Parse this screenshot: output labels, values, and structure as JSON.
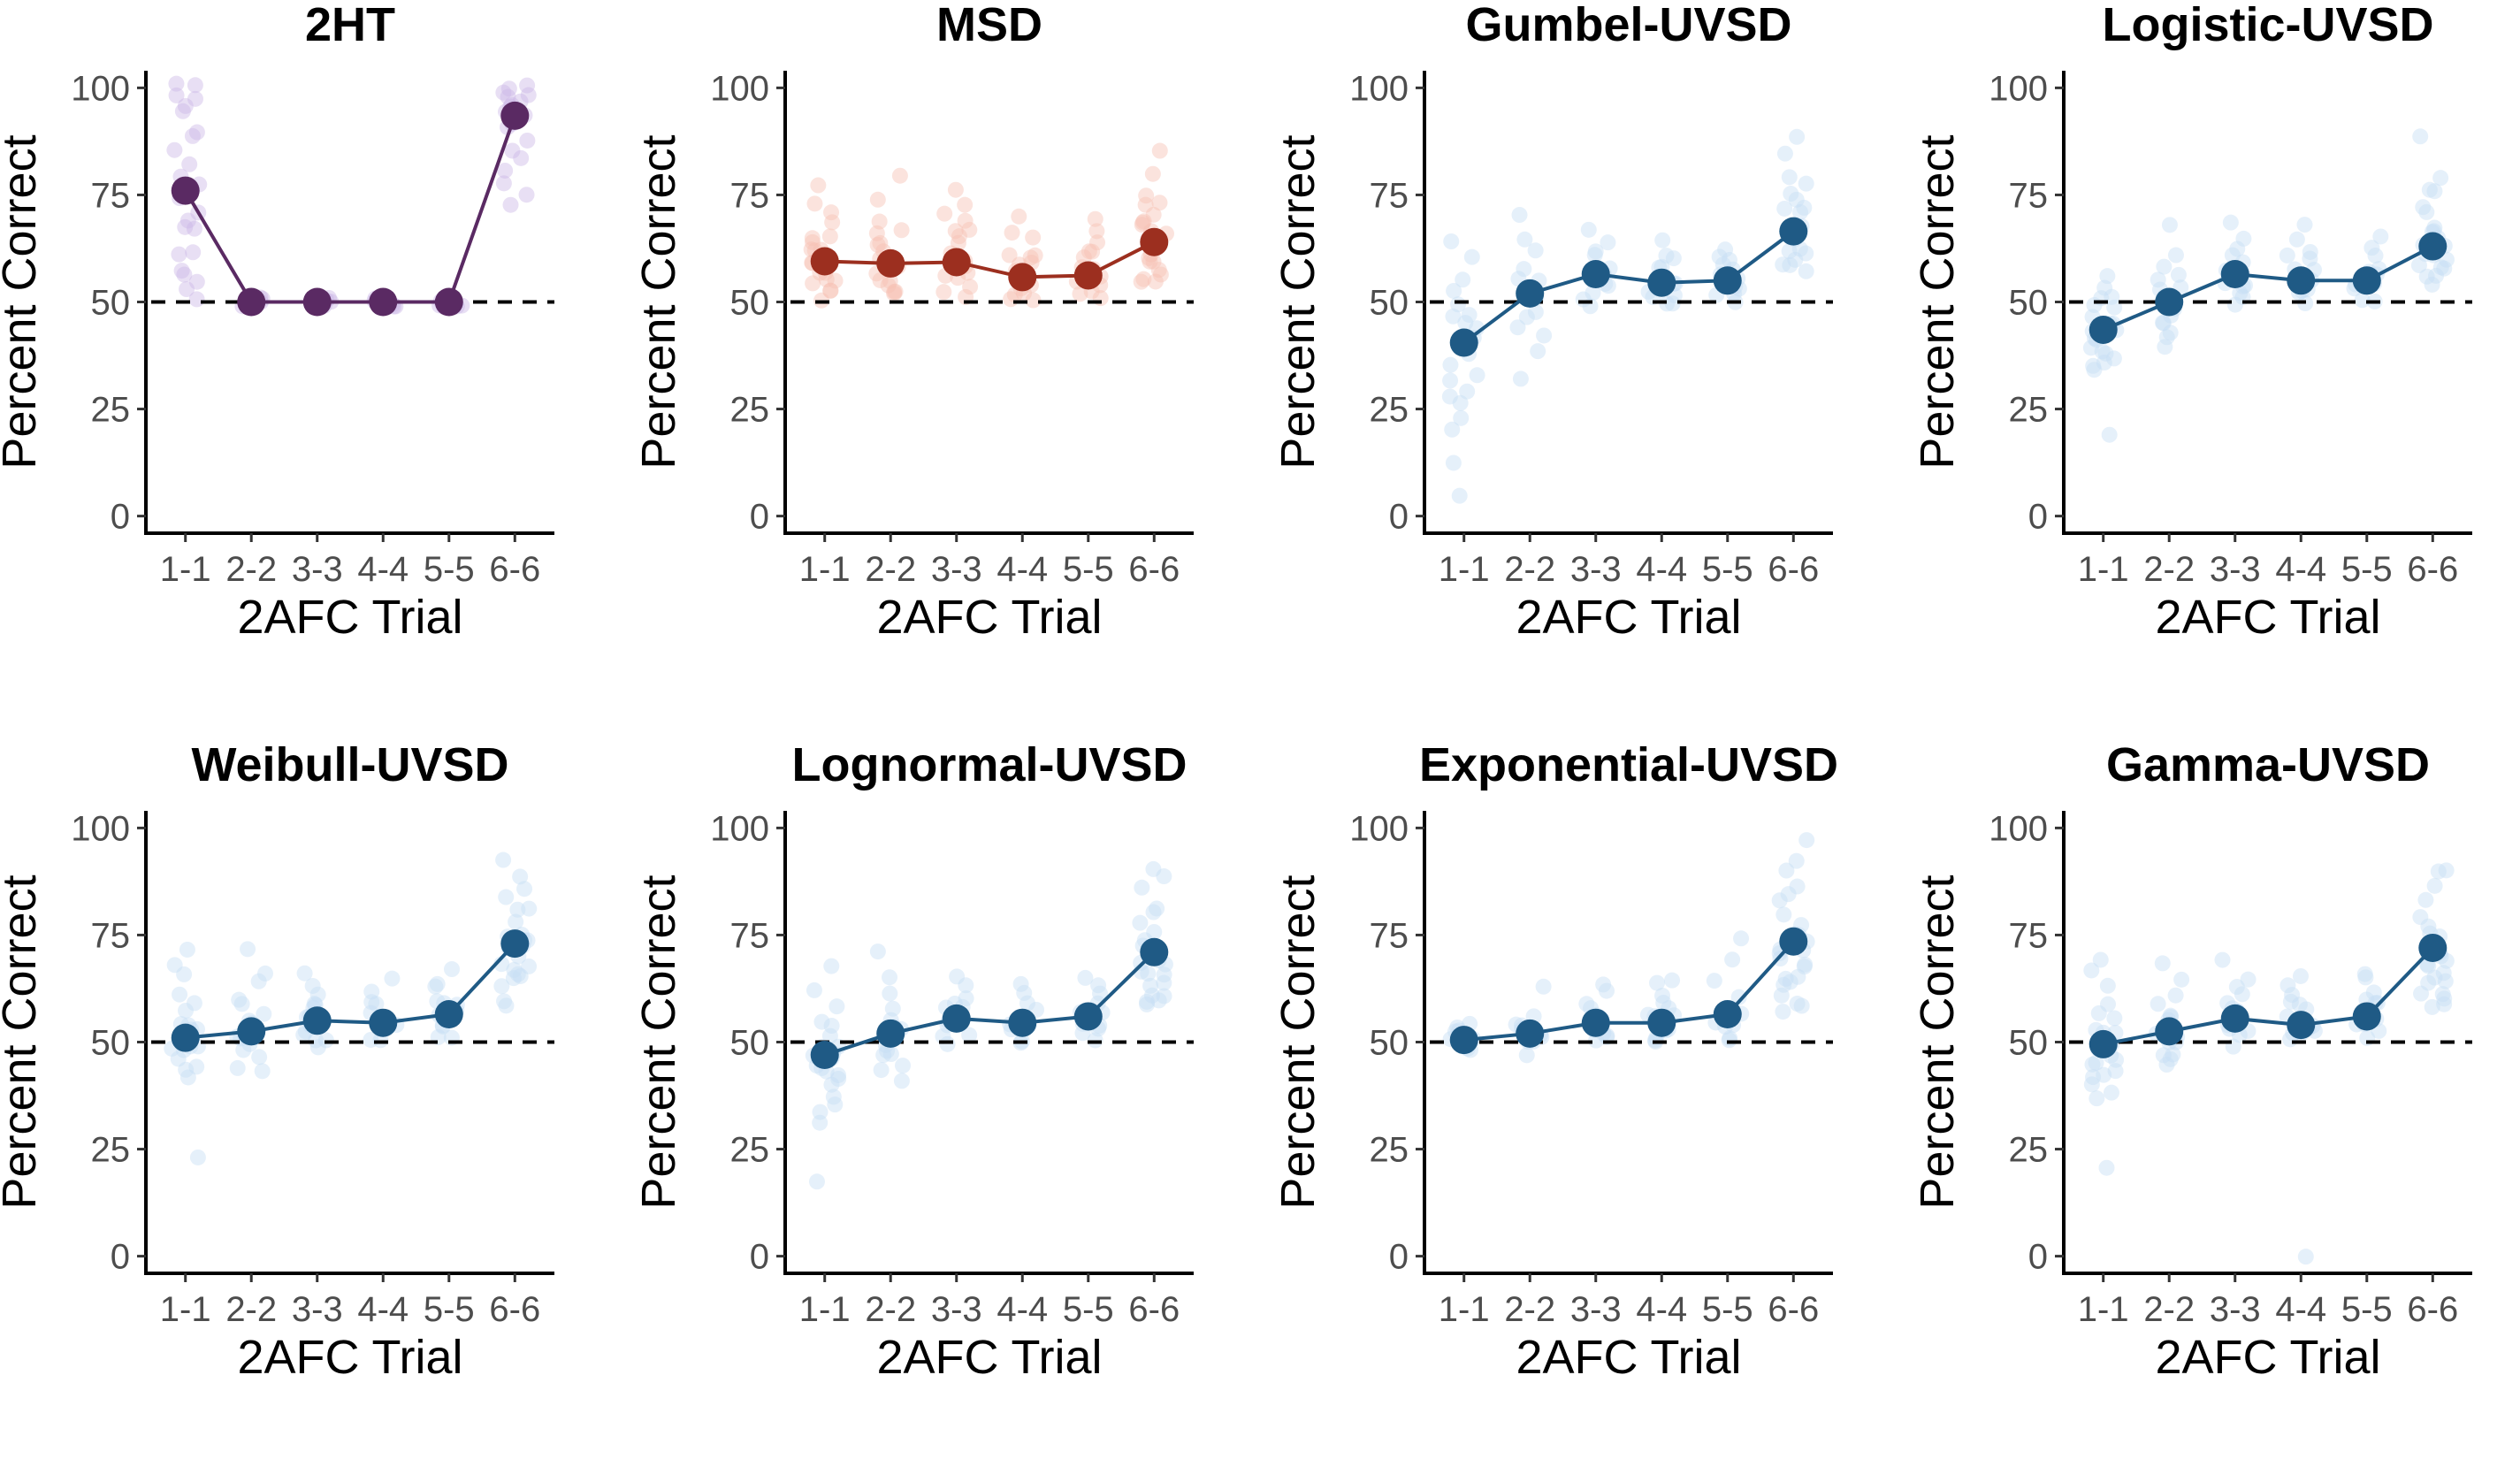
{
  "chart_data": [
    {
      "type": "line",
      "title": "2HT",
      "xlabel": "2AFC Trial",
      "ylabel": "Percent Correct",
      "categories": [
        "1-1",
        "2-2",
        "3-3",
        "4-4",
        "5-5",
        "6-6"
      ],
      "yticks": [
        0,
        25,
        50,
        75,
        100
      ],
      "ylim": [
        -4,
        104
      ],
      "reference_line": 50,
      "color": "#5a2a63",
      "raw_color": "#cdb7e6",
      "series": [
        {
          "values": [
            76,
            50,
            50,
            50,
            50,
            93.5
          ]
        }
      ],
      "raw_points": [
        [
          99,
          96,
          100,
          98,
          90,
          85,
          81,
          78,
          75,
          72,
          70,
          66,
          62,
          60,
          57,
          54,
          52,
          50,
          88,
          94,
          80,
          68,
          100,
          58
        ],
        [
          50,
          50,
          50,
          50,
          50,
          50
        ],
        [
          50,
          50,
          50,
          50,
          50,
          50
        ],
        [
          50,
          50,
          50,
          50,
          50,
          50
        ],
        [
          50,
          50,
          50,
          50,
          50,
          50
        ],
        [
          100,
          99,
          98,
          97,
          96,
          95,
          94,
          92,
          90,
          88,
          86,
          84,
          81,
          78,
          75,
          73,
          100,
          99,
          97,
          93
        ]
      ]
    },
    {
      "type": "line",
      "title": "MSD",
      "xlabel": "2AFC Trial",
      "ylabel": "Percent Correct",
      "categories": [
        "1-1",
        "2-2",
        "3-3",
        "4-4",
        "5-5",
        "6-6"
      ],
      "yticks": [
        0,
        25,
        50,
        75,
        100
      ],
      "ylim": [
        -4,
        104
      ],
      "reference_line": 50,
      "color": "#9c2f1f",
      "raw_color": "#f6c2b4",
      "series": [
        {
          "values": [
            59.5,
            59,
            59.3,
            55.8,
            56.2,
            64
          ]
        }
      ],
      "raw_points": [
        [
          78,
          72,
          68,
          66,
          64,
          62,
          61,
          60,
          59,
          58,
          57,
          56,
          55,
          54,
          53,
          52,
          51,
          63,
          65,
          70
        ],
        [
          80,
          73,
          69,
          66,
          64,
          62,
          60,
          59,
          58,
          57,
          56,
          55,
          54,
          53,
          52,
          51,
          63,
          67
        ],
        [
          77,
          72,
          70,
          67,
          65,
          63,
          61,
          60,
          59,
          58,
          57,
          56,
          55,
          54,
          53,
          52,
          66,
          68
        ],
        [
          71,
          67,
          64,
          62,
          60,
          58,
          57,
          56,
          55,
          54,
          53,
          52,
          51,
          50,
          61,
          59
        ],
        [
          70,
          66,
          63,
          61,
          60,
          58,
          57,
          56,
          55,
          54,
          53,
          52,
          51,
          62,
          59
        ],
        [
          85,
          80,
          76,
          73,
          71,
          69,
          67,
          66,
          65,
          64,
          63,
          62,
          61,
          60,
          59,
          58,
          57,
          56,
          55,
          54,
          70,
          74
        ]
      ]
    },
    {
      "type": "line",
      "title": "Gumbel-UVSD",
      "xlabel": "2AFC Trial",
      "ylabel": "Percent Correct",
      "categories": [
        "1-1",
        "2-2",
        "3-3",
        "4-4",
        "5-5",
        "6-6"
      ],
      "yticks": [
        0,
        25,
        50,
        75,
        100
      ],
      "ylim": [
        -4,
        104
      ],
      "reference_line": 50,
      "color": "#1f5a85",
      "raw_color": "#c6ddf3",
      "series": [
        {
          "values": [
            40.5,
            52,
            56.5,
            54.5,
            55,
            66.5
          ]
        }
      ],
      "raw_points": [
        [
          63,
          60,
          56,
          53,
          50,
          48,
          46,
          44,
          42,
          40,
          38,
          36,
          34,
          32,
          30,
          28,
          26,
          24,
          20,
          12,
          5,
          45
        ],
        [
          70,
          64,
          61,
          58,
          56,
          54,
          52,
          50,
          48,
          46,
          44,
          42,
          38,
          32,
          55
        ],
        [
          67,
          64,
          62,
          60,
          58,
          57,
          56,
          55,
          54,
          53,
          52,
          51,
          50,
          59
        ],
        [
          65,
          62,
          60,
          58,
          57,
          56,
          55,
          54,
          53,
          52,
          51,
          50,
          49
        ],
        [
          63,
          61,
          59,
          57,
          56,
          55,
          54,
          53,
          52,
          51,
          50,
          58
        ],
        [
          88,
          84,
          80,
          77,
          75,
          73,
          71,
          70,
          68,
          67,
          66,
          65,
          64,
          63,
          62,
          61,
          60,
          59,
          58,
          57,
          72
        ]
      ]
    },
    {
      "type": "line",
      "title": "Logistic-UVSD",
      "xlabel": "2AFC Trial",
      "ylabel": "Percent Correct",
      "categories": [
        "1-1",
        "2-2",
        "3-3",
        "4-4",
        "5-5",
        "6-6"
      ],
      "yticks": [
        0,
        25,
        50,
        75,
        100
      ],
      "ylim": [
        -4,
        104
      ],
      "reference_line": 50,
      "color": "#1f5a85",
      "raw_color": "#c6ddf3",
      "series": [
        {
          "values": [
            43.5,
            50,
            56.5,
            55,
            55,
            63
          ]
        }
      ],
      "raw_points": [
        [
          55,
          53,
          51,
          49,
          48,
          47,
          46,
          45,
          44,
          43,
          42,
          41,
          40,
          39,
          38,
          37,
          36,
          35,
          34,
          19,
          50
        ],
        [
          62,
          58,
          56,
          54,
          53,
          52,
          51,
          50,
          49,
          48,
          47,
          46,
          45,
          44,
          42,
          40,
          68
        ],
        [
          68,
          65,
          63,
          61,
          60,
          59,
          58,
          57,
          56,
          55,
          54,
          53,
          52,
          51,
          50
        ],
        [
          68,
          64,
          62,
          60,
          59,
          58,
          57,
          56,
          55,
          54,
          53,
          52,
          51,
          50
        ],
        [
          65,
          62,
          60,
          58,
          57,
          56,
          55,
          54,
          53,
          52,
          51,
          50
        ],
        [
          88,
          80,
          77,
          75,
          72,
          70,
          68,
          67,
          66,
          65,
          64,
          63,
          62,
          61,
          60,
          59,
          58,
          57,
          56,
          55,
          54
        ]
      ]
    },
    {
      "type": "line",
      "title": "Weibull-UVSD",
      "xlabel": "2AFC Trial",
      "ylabel": "Percent Correct",
      "categories": [
        "1-1",
        "2-2",
        "3-3",
        "4-4",
        "5-5",
        "6-6"
      ],
      "yticks": [
        0,
        25,
        50,
        75,
        100
      ],
      "ylim": [
        -4,
        104
      ],
      "reference_line": 50,
      "color": "#1f5a85",
      "raw_color": "#c6ddf3",
      "series": [
        {
          "values": [
            51,
            52.5,
            55,
            54.5,
            56.5,
            73
          ]
        }
      ],
      "raw_points": [
        [
          72,
          69,
          65,
          61,
          59,
          57,
          55,
          54,
          53,
          52,
          51,
          50,
          49,
          48,
          47,
          46,
          45,
          44,
          42,
          23
        ],
        [
          71,
          66,
          63,
          60,
          58,
          56,
          55,
          54,
          53,
          52,
          51,
          50,
          49,
          48,
          47,
          45,
          43
        ],
        [
          67,
          64,
          62,
          60,
          58,
          57,
          56,
          55,
          54,
          53,
          52,
          51,
          50,
          49
        ],
        [
          65,
          62,
          60,
          58,
          57,
          56,
          55,
          54,
          53,
          52,
          51,
          50
        ],
        [
          67,
          64,
          62,
          60,
          59,
          58,
          57,
          56,
          55,
          54,
          53,
          52,
          51
        ],
        [
          93,
          89,
          86,
          84,
          82,
          80,
          78,
          76,
          75,
          74,
          73,
          72,
          71,
          70,
          69,
          68,
          67,
          66,
          65,
          64,
          62,
          60,
          58
        ]
      ]
    },
    {
      "type": "line",
      "title": "Lognormal-UVSD",
      "xlabel": "2AFC Trial",
      "ylabel": "Percent Correct",
      "categories": [
        "1-1",
        "2-2",
        "3-3",
        "4-4",
        "5-5",
        "6-6"
      ],
      "yticks": [
        0,
        25,
        50,
        75,
        100
      ],
      "ylim": [
        -4,
        104
      ],
      "reference_line": 50,
      "color": "#1f5a85",
      "raw_color": "#c6ddf3",
      "series": [
        {
          "values": [
            47,
            52,
            55.5,
            54.5,
            56,
            71
          ]
        }
      ],
      "raw_points": [
        [
          68,
          62,
          58,
          55,
          53,
          51,
          50,
          49,
          48,
          47,
          46,
          45,
          44,
          43,
          42,
          41,
          40,
          38,
          36,
          34,
          32,
          17
        ],
        [
          70,
          64,
          61,
          58,
          56,
          54,
          53,
          52,
          51,
          50,
          49,
          48,
          47,
          45,
          43,
          41
        ],
        [
          66,
          63,
          61,
          59,
          58,
          57,
          56,
          55,
          54,
          53,
          52,
          51,
          50
        ],
        [
          63,
          61,
          59,
          57,
          56,
          55,
          54,
          53,
          52,
          51,
          50
        ],
        [
          66,
          63,
          61,
          59,
          58,
          57,
          56,
          55,
          54,
          53,
          52,
          51,
          50
        ],
        [
          91,
          88,
          85,
          82,
          80,
          78,
          76,
          74,
          72,
          70,
          69,
          68,
          67,
          66,
          65,
          64,
          63,
          62,
          61,
          60,
          59,
          58
        ]
      ]
    },
    {
      "type": "line",
      "title": "Exponential-UVSD",
      "xlabel": "2AFC Trial",
      "ylabel": "Percent Correct",
      "categories": [
        "1-1",
        "2-2",
        "3-3",
        "4-4",
        "5-5",
        "6-6"
      ],
      "yticks": [
        0,
        25,
        50,
        75,
        100
      ],
      "ylim": [
        -4,
        104
      ],
      "reference_line": 50,
      "color": "#1f5a85",
      "raw_color": "#c6ddf3",
      "series": [
        {
          "values": [
            50.5,
            52,
            54.5,
            54.5,
            56.5,
            73.5
          ]
        }
      ],
      "raw_points": [
        [
          54,
          53,
          52,
          51,
          50,
          49,
          48,
          52,
          51,
          50
        ],
        [
          62,
          57,
          55,
          54,
          53,
          52,
          51,
          50,
          49,
          48
        ],
        [
          63,
          61,
          59,
          58,
          57,
          56,
          55,
          54,
          53,
          52,
          51,
          50
        ],
        [
          65,
          63,
          61,
          59,
          58,
          57,
          56,
          55,
          54,
          53,
          52,
          51,
          50
        ],
        [
          75,
          69,
          64,
          61,
          59,
          58,
          57,
          56,
          55,
          54,
          53,
          52,
          51
        ],
        [
          96,
          92,
          89,
          86,
          84,
          82,
          80,
          78,
          76,
          75,
          74,
          73,
          72,
          71,
          70,
          69,
          68,
          67,
          66,
          65,
          64,
          63,
          62,
          60,
          58,
          56
        ]
      ]
    },
    {
      "type": "line",
      "title": "Gamma-UVSD",
      "xlabel": "2AFC Trial",
      "ylabel": "Percent Correct",
      "categories": [
        "1-1",
        "2-2",
        "3-3",
        "4-4",
        "5-5",
        "6-6"
      ],
      "yticks": [
        0,
        25,
        50,
        75,
        100
      ],
      "ylim": [
        -4,
        104
      ],
      "reference_line": 50,
      "color": "#1f5a85",
      "raw_color": "#c6ddf3",
      "series": [
        {
          "values": [
            49.5,
            52.5,
            55.5,
            54,
            56,
            72
          ]
        }
      ],
      "raw_points": [
        [
          70,
          66,
          62,
          59,
          57,
          55,
          53,
          52,
          51,
          50,
          49,
          48,
          47,
          46,
          45,
          44,
          43,
          42,
          41,
          40,
          38,
          36,
          20
        ],
        [
          68,
          64,
          61,
          58,
          56,
          55,
          54,
          53,
          52,
          51,
          50,
          49,
          48,
          47,
          46,
          45
        ],
        [
          69,
          65,
          62,
          60,
          59,
          58,
          57,
          56,
          55,
          54,
          53,
          52,
          51,
          50
        ],
        [
          66,
          63,
          61,
          59,
          58,
          57,
          56,
          55,
          54,
          53,
          52,
          51,
          50,
          0
        ],
        [
          67,
          64,
          62,
          60,
          59,
          58,
          57,
          56,
          55,
          54,
          53,
          52,
          51
        ],
        [
          91,
          89,
          86,
          83,
          80,
          78,
          76,
          74,
          72,
          70,
          69,
          68,
          67,
          66,
          65,
          64,
          63,
          62,
          61,
          60,
          59,
          58
        ]
      ]
    }
  ]
}
